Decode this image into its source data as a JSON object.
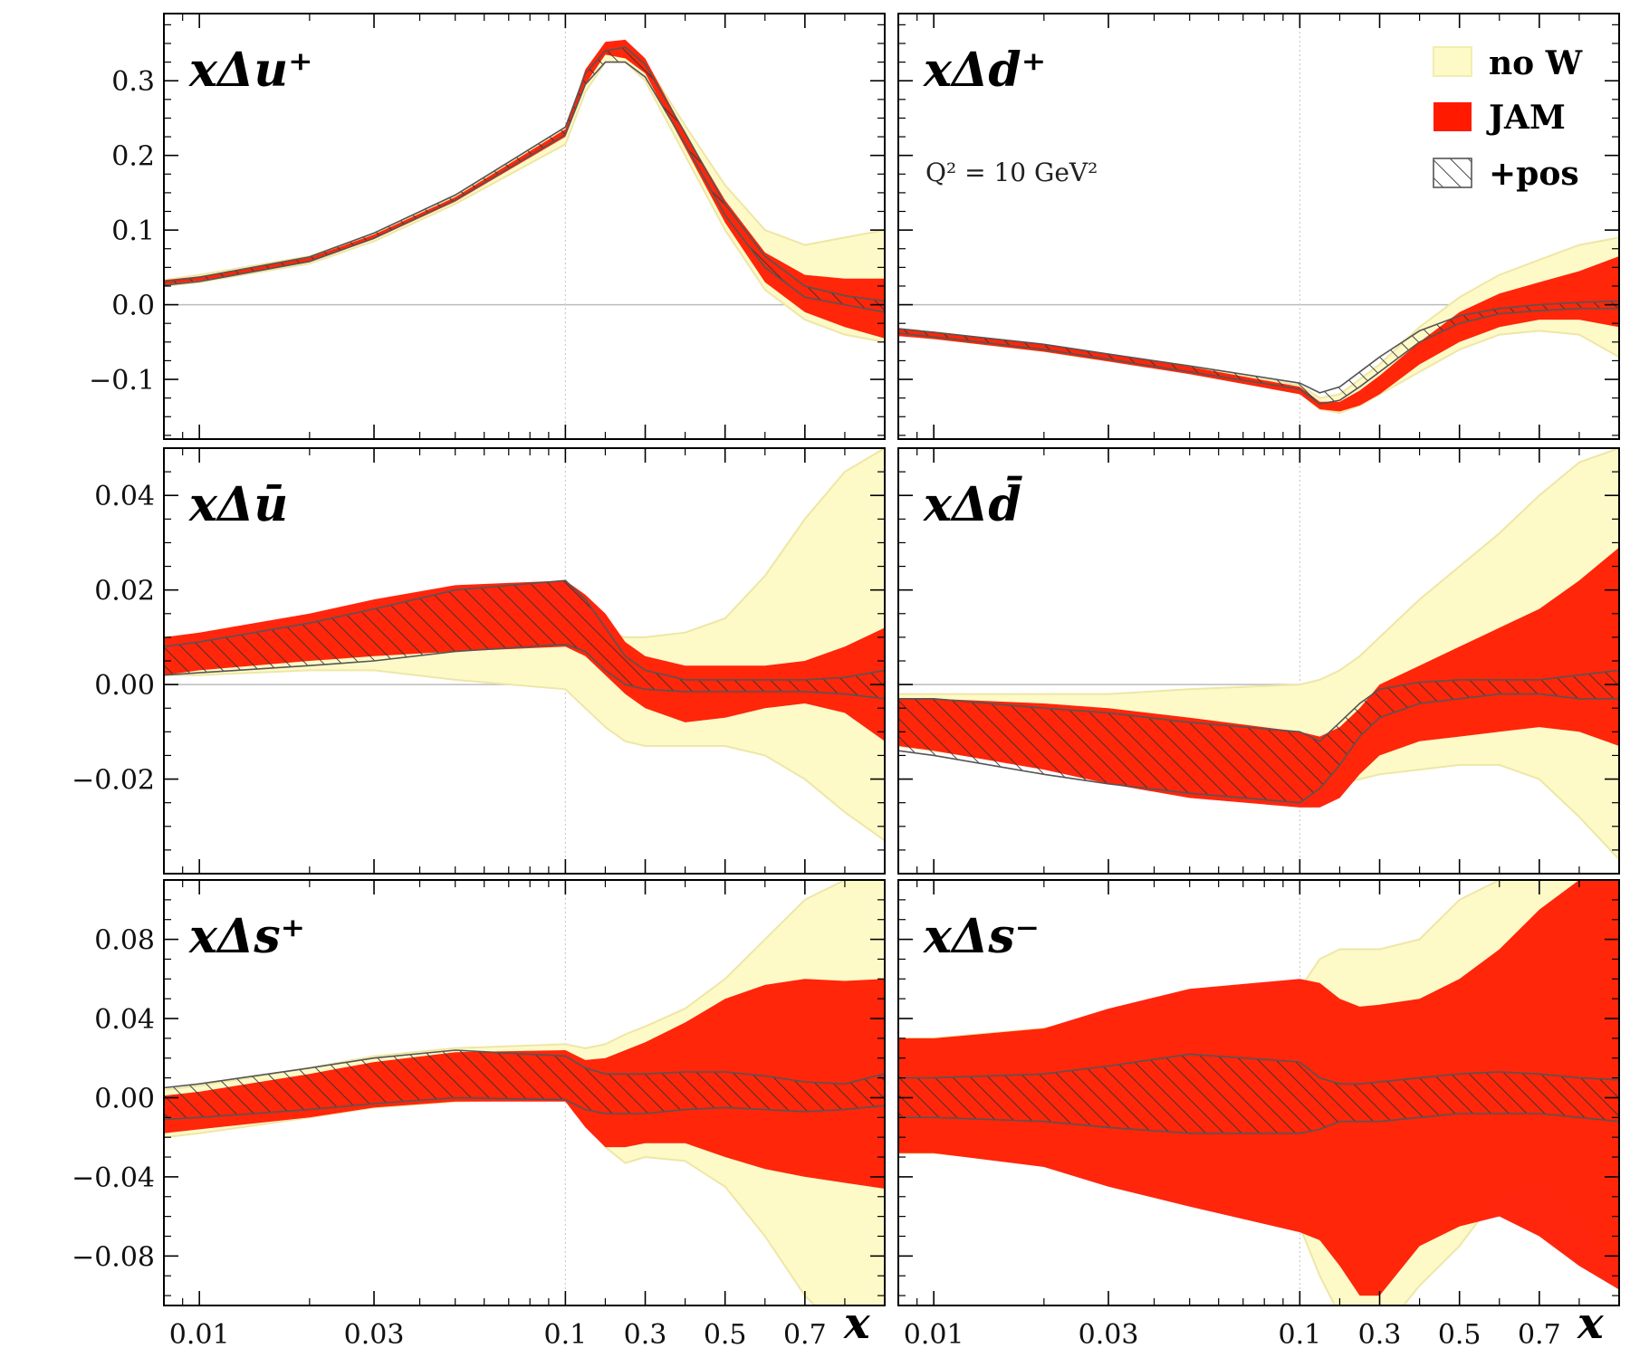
{
  "figure": {
    "x_axis_title": "x",
    "legend": [
      {
        "label": "no W",
        "color": "#fdfac8",
        "style": "fill"
      },
      {
        "label": "JAM",
        "color": "#ff1a00",
        "style": "fill"
      },
      {
        "label": "+pos",
        "color": "#555555",
        "style": "hatch"
      }
    ],
    "annotation": "Q² = 10 GeV²"
  },
  "chart_data": [
    {
      "type": "area",
      "panel_label": "xΔu⁺",
      "xscale": "custom-log-linear",
      "xticks": [
        "0.01",
        "0.03",
        "0.1",
        "0.3",
        "0.5",
        "0.7"
      ],
      "yticks": [
        "0.3",
        "0.2",
        "0.1",
        "0.0",
        "−0.1"
      ],
      "yticks_values": [
        0.3,
        0.2,
        0.1,
        0.0,
        -0.1
      ],
      "ylim": [
        -0.18,
        0.39
      ],
      "x": [
        0.008,
        0.01,
        0.02,
        0.03,
        0.05,
        0.1,
        0.15,
        0.2,
        0.25,
        0.3,
        0.4,
        0.5,
        0.6,
        0.7,
        0.8,
        0.9
      ],
      "series": [
        {
          "name": "no W",
          "lower": [
            0.025,
            0.03,
            0.055,
            0.085,
            0.135,
            0.215,
            0.285,
            0.325,
            0.325,
            0.3,
            0.2,
            0.1,
            0.02,
            -0.02,
            -0.04,
            -0.05
          ],
          "upper": [
            0.033,
            0.04,
            0.065,
            0.095,
            0.145,
            0.235,
            0.31,
            0.345,
            0.35,
            0.325,
            0.24,
            0.16,
            0.1,
            0.08,
            0.09,
            0.1
          ]
        },
        {
          "name": "JAM",
          "lower": [
            0.027,
            0.032,
            0.057,
            0.088,
            0.138,
            0.225,
            0.295,
            0.335,
            0.33,
            0.31,
            0.21,
            0.11,
            0.03,
            -0.01,
            -0.03,
            -0.045
          ],
          "upper": [
            0.033,
            0.038,
            0.063,
            0.094,
            0.144,
            0.235,
            0.315,
            0.352,
            0.355,
            0.33,
            0.23,
            0.14,
            0.07,
            0.04,
            0.035,
            0.035
          ]
        },
        {
          "name": "+pos",
          "lower": [
            0.026,
            0.031,
            0.058,
            0.089,
            0.14,
            0.228,
            0.295,
            0.325,
            0.325,
            0.305,
            0.215,
            0.12,
            0.05,
            0.01,
            0.0,
            -0.01
          ],
          "upper": [
            0.031,
            0.037,
            0.064,
            0.096,
            0.147,
            0.238,
            0.31,
            0.34,
            0.345,
            0.322,
            0.23,
            0.135,
            0.065,
            0.025,
            0.012,
            0.005
          ]
        }
      ]
    },
    {
      "type": "area",
      "panel_label": "xΔd⁺",
      "xscale": "custom-log-linear",
      "xticks": [
        "0.01",
        "0.03",
        "0.1",
        "0.3",
        "0.5",
        "0.7"
      ],
      "yticks": [],
      "yticks_values": [
        0.3,
        0.2,
        0.1,
        0.0,
        -0.1
      ],
      "ylim": [
        -0.18,
        0.39
      ],
      "x": [
        0.008,
        0.01,
        0.02,
        0.03,
        0.05,
        0.1,
        0.15,
        0.2,
        0.25,
        0.3,
        0.4,
        0.5,
        0.6,
        0.7,
        0.8,
        0.9
      ],
      "series": [
        {
          "name": "no W",
          "lower": [
            -0.04,
            -0.045,
            -0.062,
            -0.075,
            -0.092,
            -0.118,
            -0.14,
            -0.145,
            -0.135,
            -0.12,
            -0.09,
            -0.06,
            -0.04,
            -0.035,
            -0.04,
            -0.07
          ],
          "upper": [
            -0.032,
            -0.037,
            -0.054,
            -0.067,
            -0.084,
            -0.108,
            -0.125,
            -0.12,
            -0.1,
            -0.08,
            -0.03,
            0.01,
            0.04,
            0.06,
            0.08,
            0.09
          ]
        },
        {
          "name": "JAM",
          "lower": [
            -0.042,
            -0.046,
            -0.063,
            -0.076,
            -0.093,
            -0.12,
            -0.14,
            -0.143,
            -0.135,
            -0.12,
            -0.08,
            -0.05,
            -0.03,
            -0.02,
            -0.02,
            -0.03
          ],
          "upper": [
            -0.032,
            -0.036,
            -0.053,
            -0.066,
            -0.083,
            -0.11,
            -0.13,
            -0.13,
            -0.115,
            -0.095,
            -0.05,
            -0.01,
            0.015,
            0.03,
            0.045,
            0.065
          ]
        },
        {
          "name": "+pos",
          "lower": [
            -0.038,
            -0.043,
            -0.06,
            -0.073,
            -0.09,
            -0.113,
            -0.133,
            -0.128,
            -0.11,
            -0.09,
            -0.05,
            -0.025,
            -0.012,
            -0.008,
            -0.005,
            -0.005
          ],
          "upper": [
            -0.032,
            -0.037,
            -0.053,
            -0.066,
            -0.082,
            -0.105,
            -0.118,
            -0.11,
            -0.09,
            -0.07,
            -0.035,
            -0.015,
            -0.005,
            0.0,
            0.003,
            0.005
          ]
        }
      ],
      "annotation_key": "figure.annotation"
    },
    {
      "type": "area",
      "panel_label": "xΔū",
      "xscale": "custom-log-linear",
      "xticks": [
        "0.01",
        "0.03",
        "0.1",
        "0.3",
        "0.5",
        "0.7"
      ],
      "yticks": [
        "0.04",
        "0.02",
        "0.00",
        "−0.02"
      ],
      "yticks_values": [
        0.04,
        0.02,
        0.0,
        -0.02
      ],
      "ylim": [
        -0.04,
        0.05
      ],
      "x": [
        0.008,
        0.01,
        0.02,
        0.03,
        0.05,
        0.1,
        0.15,
        0.2,
        0.25,
        0.3,
        0.4,
        0.5,
        0.6,
        0.7,
        0.8,
        0.9
      ],
      "series": [
        {
          "name": "no W",
          "lower": [
            0.002,
            0.002,
            0.003,
            0.003,
            0.001,
            -0.001,
            -0.005,
            -0.009,
            -0.012,
            -0.013,
            -0.013,
            -0.013,
            -0.015,
            -0.02,
            -0.027,
            -0.033
          ],
          "upper": [
            0.007,
            0.008,
            0.011,
            0.013,
            0.016,
            0.014,
            0.011,
            0.011,
            0.01,
            0.01,
            0.011,
            0.014,
            0.023,
            0.035,
            0.045,
            0.05
          ]
        },
        {
          "name": "JAM",
          "lower": [
            0.002,
            0.003,
            0.005,
            0.006,
            0.007,
            0.008,
            0.006,
            0.002,
            -0.002,
            -0.005,
            -0.008,
            -0.007,
            -0.005,
            -0.004,
            -0.006,
            -0.012
          ]
        },
        {
          "name": "JAM",
          "lower": [
            0.002,
            0.003,
            0.005,
            0.006,
            0.007,
            0.008,
            0.006,
            0.002,
            -0.002,
            -0.005,
            -0.008,
            -0.007,
            -0.005,
            -0.004,
            -0.006,
            -0.012
          ],
          "upper": [
            0.01,
            0.011,
            0.015,
            0.018,
            0.021,
            0.022,
            0.019,
            0.015,
            0.009,
            0.006,
            0.004,
            0.004,
            0.004,
            0.005,
            0.008,
            0.012
          ]
        },
        {
          "name": "+pos",
          "lower": [
            0.002,
            0.0025,
            0.004,
            0.005,
            0.007,
            0.0085,
            0.007,
            0.003,
            0.0,
            -0.001,
            -0.0015,
            -0.0015,
            -0.0015,
            -0.0015,
            -0.002,
            -0.003
          ],
          "upper": [
            0.008,
            0.009,
            0.013,
            0.016,
            0.02,
            0.022,
            0.018,
            0.012,
            0.006,
            0.003,
            0.001,
            0.001,
            0.001,
            0.001,
            0.0015,
            0.003
          ]
        }
      ]
    },
    {
      "type": "area",
      "panel_label": "xΔd̄",
      "xscale": "custom-log-linear",
      "xticks": [
        "0.01",
        "0.03",
        "0.1",
        "0.3",
        "0.5",
        "0.7"
      ],
      "yticks": [],
      "yticks_values": [
        0.04,
        0.02,
        0.0,
        -0.02
      ],
      "ylim": [
        -0.04,
        0.05
      ],
      "x": [
        0.008,
        0.01,
        0.02,
        0.03,
        0.05,
        0.1,
        0.15,
        0.2,
        0.25,
        0.3,
        0.4,
        0.5,
        0.6,
        0.7,
        0.8,
        0.9
      ],
      "series": [
        {
          "name": "no W",
          "lower": [
            -0.013,
            -0.014,
            -0.017,
            -0.019,
            -0.021,
            -0.022,
            -0.022,
            -0.021,
            -0.02,
            -0.019,
            -0.018,
            -0.017,
            -0.017,
            -0.02,
            -0.028,
            -0.037
          ],
          "upper": [
            -0.002,
            -0.002,
            -0.002,
            -0.002,
            -0.001,
            0.0,
            0.001,
            0.003,
            0.006,
            0.01,
            0.018,
            0.025,
            0.032,
            0.04,
            0.047,
            0.05
          ]
        },
        {
          "name": "JAM",
          "lower": [
            -0.013,
            -0.014,
            -0.018,
            -0.021,
            -0.024,
            -0.026,
            -0.026,
            -0.024,
            -0.019,
            -0.015,
            -0.012,
            -0.011,
            -0.01,
            -0.009,
            -0.01,
            -0.013
          ],
          "upper": [
            -0.003,
            -0.003,
            -0.004,
            -0.005,
            -0.007,
            -0.01,
            -0.011,
            -0.009,
            -0.005,
            0.0,
            0.004,
            0.008,
            0.012,
            0.016,
            0.022,
            0.029
          ]
        },
        {
          "name": "+pos",
          "lower": [
            -0.014,
            -0.015,
            -0.019,
            -0.021,
            -0.023,
            -0.025,
            -0.022,
            -0.017,
            -0.011,
            -0.007,
            -0.004,
            -0.003,
            -0.002,
            -0.002,
            -0.003,
            -0.003
          ],
          "upper": [
            -0.003,
            -0.003,
            -0.005,
            -0.006,
            -0.008,
            -0.01,
            -0.012,
            -0.008,
            -0.004,
            -0.001,
            0.0005,
            0.001,
            0.001,
            0.001,
            0.002,
            0.003
          ]
        }
      ]
    },
    {
      "type": "area",
      "panel_label": "xΔs⁺",
      "xscale": "custom-log-linear",
      "xticks": [
        "0.01",
        "0.03",
        "0.1",
        "0.3",
        "0.5",
        "0.7"
      ],
      "yticks": [
        "0.08",
        "0.04",
        "0.00",
        "−0.04",
        "−0.08"
      ],
      "yticks_values": [
        0.08,
        0.04,
        0.0,
        -0.04,
        -0.08
      ],
      "ylim": [
        -0.105,
        0.11
      ],
      "x": [
        0.008,
        0.01,
        0.02,
        0.03,
        0.05,
        0.1,
        0.15,
        0.2,
        0.25,
        0.3,
        0.4,
        0.5,
        0.6,
        0.7,
        0.8,
        0.9
      ],
      "series": [
        {
          "name": "no W",
          "lower": [
            -0.02,
            -0.018,
            -0.01,
            -0.005,
            -0.002,
            0.0,
            -0.012,
            -0.025,
            -0.033,
            -0.03,
            -0.032,
            -0.045,
            -0.07,
            -0.1,
            -0.12,
            -0.13
          ],
          "upper": [
            0.004,
            0.006,
            0.015,
            0.021,
            0.025,
            0.027,
            0.025,
            0.027,
            0.032,
            0.036,
            0.045,
            0.06,
            0.08,
            0.1,
            0.11,
            0.11
          ]
        },
        {
          "name": "JAM",
          "lower": [
            -0.018,
            -0.016,
            -0.01,
            -0.005,
            -0.002,
            -0.002,
            -0.015,
            -0.025,
            -0.025,
            -0.023,
            -0.023,
            -0.03,
            -0.036,
            -0.04,
            -0.043,
            -0.046
          ],
          "upper": [
            0.001,
            0.003,
            0.012,
            0.018,
            0.023,
            0.024,
            0.019,
            0.02,
            0.024,
            0.028,
            0.038,
            0.05,
            0.057,
            0.06,
            0.059,
            0.06
          ]
        },
        {
          "name": "+pos",
          "lower": [
            -0.011,
            -0.01,
            -0.006,
            -0.003,
            0.0,
            -0.001,
            -0.006,
            -0.008,
            -0.008,
            -0.008,
            -0.006,
            -0.005,
            -0.006,
            -0.007,
            -0.006,
            -0.004
          ],
          "upper": [
            0.005,
            0.007,
            0.015,
            0.02,
            0.024,
            0.021,
            0.015,
            0.012,
            0.012,
            0.012,
            0.013,
            0.013,
            0.011,
            0.008,
            0.007,
            0.012
          ]
        }
      ]
    },
    {
      "type": "area",
      "panel_label": "xΔs⁻",
      "xscale": "custom-log-linear",
      "xticks": [
        "0.01",
        "0.03",
        "0.1",
        "0.3",
        "0.5",
        "0.7"
      ],
      "yticks": [],
      "yticks_values": [
        0.08,
        0.04,
        0.0,
        -0.04,
        -0.08
      ],
      "ylim": [
        -0.105,
        0.11
      ],
      "x": [
        0.008,
        0.01,
        0.02,
        0.03,
        0.05,
        0.1,
        0.15,
        0.2,
        0.25,
        0.3,
        0.4,
        0.5,
        0.6,
        0.7,
        0.8,
        0.9
      ],
      "series": [
        {
          "name": "no W",
          "lower": [
            -0.028,
            -0.028,
            -0.033,
            -0.04,
            -0.05,
            -0.065,
            -0.09,
            -0.11,
            -0.125,
            -0.12,
            -0.095,
            -0.075,
            -0.048,
            -0.042,
            -0.06,
            -0.085
          ],
          "upper": [
            0.03,
            0.03,
            0.035,
            0.04,
            0.048,
            0.055,
            0.07,
            0.075,
            0.075,
            0.075,
            0.08,
            0.1,
            0.11,
            0.11,
            0.11,
            0.11
          ]
        },
        {
          "name": "JAM",
          "lower": [
            -0.028,
            -0.028,
            -0.035,
            -0.045,
            -0.055,
            -0.068,
            -0.072,
            -0.085,
            -0.1,
            -0.1,
            -0.075,
            -0.065,
            -0.06,
            -0.07,
            -0.085,
            -0.097
          ],
          "upper": [
            0.03,
            0.03,
            0.035,
            0.045,
            0.055,
            0.06,
            0.058,
            0.05,
            0.046,
            0.047,
            0.05,
            0.06,
            0.075,
            0.095,
            0.11,
            0.11
          ]
        },
        {
          "name": "+pos",
          "lower": [
            -0.01,
            -0.01,
            -0.012,
            -0.015,
            -0.018,
            -0.018,
            -0.016,
            -0.012,
            -0.012,
            -0.012,
            -0.01,
            -0.008,
            -0.008,
            -0.008,
            -0.01,
            -0.012
          ],
          "upper": [
            0.01,
            0.01,
            0.012,
            0.016,
            0.022,
            0.018,
            0.01,
            0.007,
            0.007,
            0.008,
            0.01,
            0.012,
            0.013,
            0.012,
            0.01,
            0.009
          ]
        }
      ]
    }
  ]
}
